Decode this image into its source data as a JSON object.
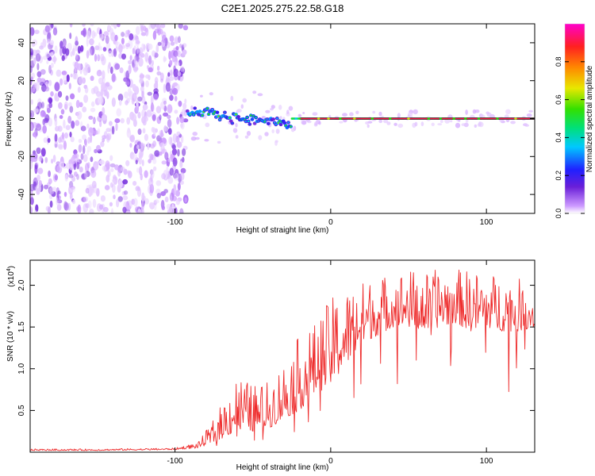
{
  "title": "C2E1.2025.275.22.58.G18",
  "chart_data": [
    {
      "type": "heatmap",
      "name": "spectrogram",
      "xlabel": "Height of straight line (km)",
      "ylabel": "Frequency (Hz)",
      "xlim": [
        -193,
        131
      ],
      "ylim": [
        -50,
        50
      ],
      "xticks": [
        -100,
        0,
        100
      ],
      "xtick_labels": [
        "-100",
        "0",
        "100"
      ],
      "yticks": [
        -40,
        -20,
        0,
        20,
        40
      ],
      "ytick_labels": [
        "-40",
        "-20",
        "0",
        "20",
        "40"
      ],
      "noise_region_end_km": -93,
      "carrier_frequency_hz": 0,
      "colorbar": {
        "label": "Normalized spectral amplitude",
        "range": [
          0,
          1
        ],
        "ticks": [
          0.0,
          0.2,
          0.4,
          0.6,
          0.8
        ],
        "tick_labels": [
          "0.0",
          "0.2",
          "0.4",
          "0.6",
          "0.8"
        ],
        "colormap": [
          "#ffffff",
          "#cc99ff",
          "#6a1fd8",
          "#2020ff",
          "#00c8ff",
          "#00e07a",
          "#33e000",
          "#e8e800",
          "#ff8800",
          "#ff2020",
          "#ff00cc"
        ]
      }
    },
    {
      "type": "line",
      "name": "snr",
      "xlabel": "Height of straight line (km)",
      "ylabel": "SNR (10 * v/v)",
      "scale_label": "(x10",
      "scale_exponent": "4",
      "xlim": [
        -193,
        131
      ],
      "ylim": [
        0,
        2.3
      ],
      "xticks": [
        -100,
        0,
        100
      ],
      "xtick_labels": [
        "-100",
        "0",
        "100"
      ],
      "yticks": [
        0.5,
        1.0,
        1.5,
        2.0
      ],
      "ytick_labels": [
        "0.5",
        "1.0",
        "1.5",
        "2.0"
      ],
      "color": "#ee2a2a",
      "envelope": {
        "x": [
          -193,
          -150,
          -100,
          -85,
          -75,
          -60,
          -50,
          -40,
          -30,
          -20,
          -10,
          0,
          10,
          20,
          30,
          40,
          50,
          60,
          70,
          80,
          90,
          100,
          110,
          120,
          131
        ],
        "base": [
          0.02,
          0.02,
          0.03,
          0.05,
          0.12,
          0.25,
          0.25,
          0.28,
          0.4,
          0.5,
          0.7,
          0.8,
          1.05,
          1.3,
          1.4,
          1.5,
          1.5,
          1.45,
          1.5,
          1.55,
          1.45,
          1.5,
          1.45,
          1.45,
          1.5
        ],
        "peak": [
          0.04,
          0.04,
          0.05,
          0.12,
          0.4,
          0.95,
          0.8,
          0.85,
          1.1,
          1.4,
          1.55,
          1.85,
          1.95,
          2.05,
          2.1,
          2.15,
          2.2,
          2.15,
          2.2,
          2.2,
          2.18,
          2.15,
          2.12,
          2.1,
          1.9
        ]
      }
    }
  ]
}
